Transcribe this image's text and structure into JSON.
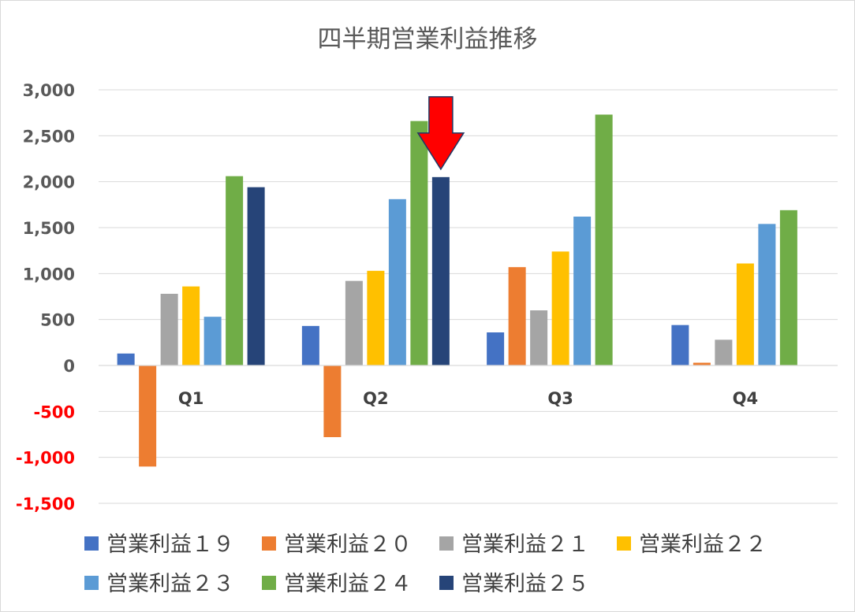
{
  "chart_data": {
    "type": "bar",
    "title": "四半期営業利益推移",
    "categories": [
      "Q1",
      "Q2",
      "Q3",
      "Q4"
    ],
    "ylim": [
      -1500,
      3000
    ],
    "yticks": [
      3000,
      2500,
      2000,
      1500,
      1000,
      500,
      0,
      -500,
      -1000,
      -1500
    ],
    "ytick_labels": [
      "3,000",
      "2,500",
      "2,000",
      "1,500",
      "1,000",
      "500",
      "0",
      "-500",
      "-1,000",
      "-1,500"
    ],
    "negative_tick_color": "#FF0000",
    "positive_tick_color": "#595959",
    "grid": true,
    "legend_position": "bottom",
    "series": [
      {
        "name": "営業利益１９",
        "color": "#4472C4",
        "values": [
          130,
          430,
          360,
          440
        ]
      },
      {
        "name": "営業利益２０",
        "color": "#ED7D31",
        "values": [
          -1100,
          -780,
          1070,
          30
        ]
      },
      {
        "name": "営業利益２１",
        "color": "#A5A5A5",
        "values": [
          780,
          920,
          600,
          280
        ]
      },
      {
        "name": "営業利益２２",
        "color": "#FFC000",
        "values": [
          860,
          1030,
          1240,
          1110
        ]
      },
      {
        "name": "営業利益２３",
        "color": "#5B9BD5",
        "values": [
          530,
          1810,
          1620,
          1540
        ]
      },
      {
        "name": "営業利益２４",
        "color": "#70AD47",
        "values": [
          2060,
          2660,
          2730,
          1690
        ]
      },
      {
        "name": "営業利益２５",
        "color": "#264478",
        "values": [
          1940,
          2050,
          null,
          null
        ]
      }
    ],
    "annotations": [
      {
        "type": "arrow-down",
        "category": "Q2",
        "series_index": 6,
        "color": "#FF0000"
      }
    ]
  }
}
